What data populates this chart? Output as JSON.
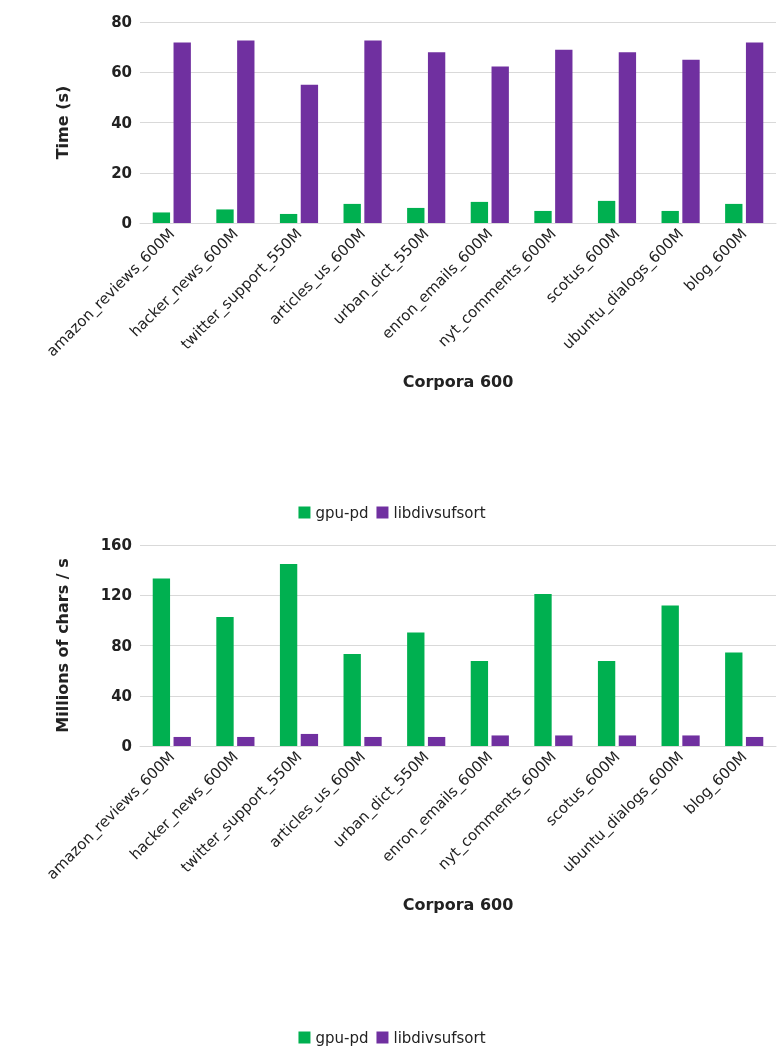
{
  "chart_data": [
    {
      "type": "bar",
      "categories": [
        "amazon_reviews_600M",
        "hacker_news_600M",
        "twitter_support_550M",
        "articles_us_600M",
        "urban_dict_550M",
        "enron_emails_600M",
        "nyt_comments_600M",
        "scotus_600M",
        "ubuntu_dialogs_600M",
        "blog_600M"
      ],
      "xlabel": "Corpora 600",
      "ylabel": "Time (s)",
      "ylim": [
        0,
        80
      ],
      "yticks": [
        0,
        20,
        40,
        60,
        80
      ],
      "grid": "y",
      "legend": "bottom",
      "series": [
        {
          "name": "gpu-pd",
          "color": "#00b050",
          "values": [
            4.2,
            5.4,
            3.6,
            7.6,
            6,
            8.4,
            4.8,
            8.8,
            4.8,
            7.6
          ]
        },
        {
          "name": "libdivsufsort",
          "color": "#7030a0",
          "values": [
            71.8,
            72.6,
            55,
            72.6,
            68,
            62.3,
            69,
            68,
            65,
            71.8
          ]
        }
      ]
    },
    {
      "type": "bar",
      "categories": [
        "amazon_reviews_600M",
        "hacker_news_600M",
        "twitter_support_550M",
        "articles_us_600M",
        "urban_dict_550M",
        "enron_emails_600M",
        "nyt_comments_600M",
        "scotus_600M",
        "ubuntu_dialogs_600M",
        "blog_600M"
      ],
      "xlabel": "Corpora 600",
      "ylabel": "Millions of chars / s",
      "ylim": [
        0,
        160
      ],
      "yticks": [
        0,
        40,
        80,
        120,
        160
      ],
      "grid": "y",
      "legend": "bottom",
      "series": [
        {
          "name": "gpu-pd",
          "color": "#00b050",
          "values": [
            133.3,
            102.7,
            144.9,
            73.2,
            90.3,
            67.7,
            121,
            67.7,
            111.8,
            74.4
          ]
        },
        {
          "name": "libdivsufsort",
          "color": "#7030a0",
          "values": [
            7.2,
            7.2,
            9.6,
            7.2,
            7.2,
            8.4,
            8.4,
            8.4,
            8.4,
            7.2
          ]
        }
      ]
    }
  ]
}
